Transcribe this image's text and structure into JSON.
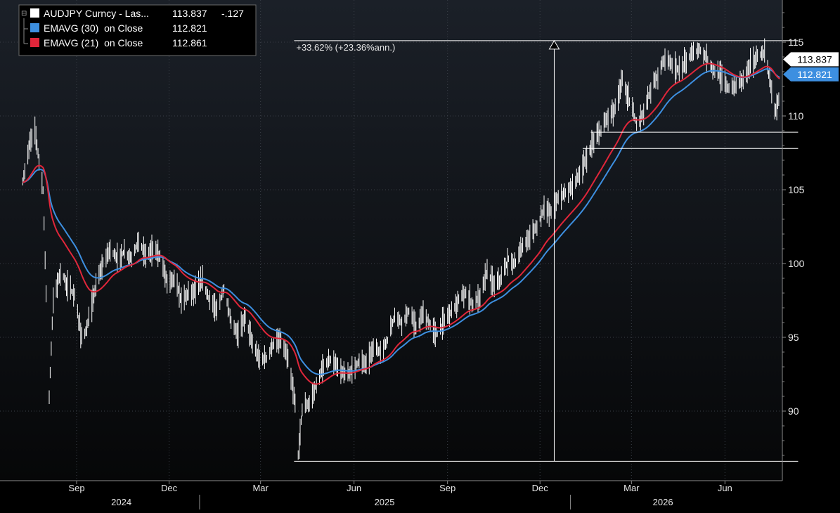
{
  "chart_data": {
    "type": "line",
    "title": "",
    "xlabel": "",
    "ylabel": "",
    "ylim": [
      86,
      118
    ],
    "grid": true,
    "legend_position": "top-left",
    "y_ticks": [
      90,
      95,
      100,
      105,
      110,
      115
    ],
    "x_month_ticks": [
      {
        "label": "Sep",
        "date": "2024-09-01"
      },
      {
        "label": "Dec",
        "date": "2024-12-01"
      },
      {
        "label": "Mar",
        "date": "2025-03-01"
      },
      {
        "label": "Jun",
        "date": "2025-06-01"
      },
      {
        "label": "Sep",
        "date": "2025-09-01"
      },
      {
        "label": "Dec",
        "date": "2025-12-01"
      },
      {
        "label": "Mar",
        "date": "2026-03-01"
      },
      {
        "label": "Jun",
        "date": "2026-06-01"
      }
    ],
    "x_year_labels": [
      {
        "label": "2024",
        "date": "2024-10-15"
      },
      {
        "label": "2025",
        "date": "2025-07-01"
      },
      {
        "label": "2026",
        "date": "2026-04-01"
      }
    ],
    "x_year_dividers": [
      "2024-12-31",
      "2025-12-31"
    ],
    "price_points": [
      [
        "2024-07-10",
        105.5
      ],
      [
        "2024-07-18",
        108.5
      ],
      [
        "2024-07-22",
        109.0
      ],
      [
        "2024-07-30",
        105.0
      ],
      [
        "2024-08-05",
        91.0
      ],
      [
        "2024-08-09",
        97.5
      ],
      [
        "2024-08-16",
        99.5
      ],
      [
        "2024-08-23",
        98.5
      ],
      [
        "2024-08-30",
        97.8
      ],
      [
        "2024-09-06",
        95.0
      ],
      [
        "2024-09-11",
        95.5
      ],
      [
        "2024-09-20",
        98.5
      ],
      [
        "2024-09-27",
        100.0
      ],
      [
        "2024-10-04",
        101.0
      ],
      [
        "2024-10-11",
        100.3
      ],
      [
        "2024-10-18",
        100.8
      ],
      [
        "2024-10-25",
        100.3
      ],
      [
        "2024-11-01",
        101.6
      ],
      [
        "2024-11-08",
        100.5
      ],
      [
        "2024-11-15",
        101.0
      ],
      [
        "2024-11-22",
        100.5
      ],
      [
        "2024-11-29",
        98.8
      ],
      [
        "2024-12-06",
        99.0
      ],
      [
        "2024-12-13",
        97.5
      ],
      [
        "2024-12-20",
        98.0
      ],
      [
        "2024-12-27",
        98.2
      ],
      [
        "2025-01-03",
        98.8
      ],
      [
        "2025-01-10",
        97.5
      ],
      [
        "2025-01-17",
        96.8
      ],
      [
        "2025-01-24",
        98.3
      ],
      [
        "2025-01-31",
        96.0
      ],
      [
        "2025-02-07",
        95.2
      ],
      [
        "2025-02-14",
        96.5
      ],
      [
        "2025-02-21",
        94.5
      ],
      [
        "2025-02-28",
        93.5
      ],
      [
        "2025-03-07",
        93.6
      ],
      [
        "2025-03-14",
        94.6
      ],
      [
        "2025-03-21",
        94.8
      ],
      [
        "2025-03-28",
        93.5
      ],
      [
        "2025-04-04",
        90.5
      ],
      [
        "2025-04-07",
        87.0
      ],
      [
        "2025-04-11",
        90.2
      ],
      [
        "2025-04-18",
        90.5
      ],
      [
        "2025-04-25",
        91.8
      ],
      [
        "2025-05-02",
        93.0
      ],
      [
        "2025-05-09",
        93.5
      ],
      [
        "2025-05-16",
        93.0
      ],
      [
        "2025-05-23",
        92.4
      ],
      [
        "2025-05-30",
        92.8
      ],
      [
        "2025-06-06",
        93.4
      ],
      [
        "2025-06-13",
        93.2
      ],
      [
        "2025-06-20",
        94.3
      ],
      [
        "2025-06-27",
        94.0
      ],
      [
        "2025-07-04",
        94.8
      ],
      [
        "2025-07-11",
        96.5
      ],
      [
        "2025-07-18",
        96.0
      ],
      [
        "2025-07-25",
        96.8
      ],
      [
        "2025-08-01",
        95.6
      ],
      [
        "2025-08-08",
        96.6
      ],
      [
        "2025-08-15",
        95.8
      ],
      [
        "2025-08-22",
        95.2
      ],
      [
        "2025-08-29",
        96.2
      ],
      [
        "2025-09-05",
        96.8
      ],
      [
        "2025-09-12",
        97.5
      ],
      [
        "2025-09-19",
        98.0
      ],
      [
        "2025-09-26",
        97.2
      ],
      [
        "2025-10-03",
        97.8
      ],
      [
        "2025-10-10",
        99.5
      ],
      [
        "2025-10-17",
        98.5
      ],
      [
        "2025-10-24",
        99.0
      ],
      [
        "2025-10-31",
        100.3
      ],
      [
        "2025-11-07",
        100.0
      ],
      [
        "2025-11-14",
        101.2
      ],
      [
        "2025-11-21",
        101.8
      ],
      [
        "2025-11-28",
        102.5
      ],
      [
        "2025-12-05",
        103.8
      ],
      [
        "2025-12-12",
        103.5
      ],
      [
        "2025-12-19",
        104.5
      ],
      [
        "2025-12-26",
        104.8
      ],
      [
        "2026-01-02",
        105.3
      ],
      [
        "2026-01-09",
        106.0
      ],
      [
        "2026-01-16",
        107.2
      ],
      [
        "2026-01-23",
        108.3
      ],
      [
        "2026-01-30",
        109.0
      ],
      [
        "2026-02-06",
        110.0
      ],
      [
        "2026-02-13",
        110.5
      ],
      [
        "2026-02-20",
        112.5
      ],
      [
        "2026-02-27",
        111.0
      ],
      [
        "2026-03-06",
        109.5
      ],
      [
        "2026-03-13",
        110.2
      ],
      [
        "2026-03-20",
        111.8
      ],
      [
        "2026-03-27",
        112.8
      ],
      [
        "2026-04-03",
        114.0
      ],
      [
        "2026-04-10",
        113.5
      ],
      [
        "2026-04-17",
        113.0
      ],
      [
        "2026-04-24",
        113.8
      ],
      [
        "2026-05-01",
        114.3
      ],
      [
        "2026-05-08",
        114.5
      ],
      [
        "2026-05-15",
        113.8
      ],
      [
        "2026-05-22",
        113.0
      ],
      [
        "2026-05-29",
        112.6
      ],
      [
        "2026-06-05",
        111.8
      ],
      [
        "2026-06-12",
        112.0
      ],
      [
        "2026-06-19",
        112.6
      ],
      [
        "2026-06-26",
        113.5
      ],
      [
        "2026-07-03",
        114.0
      ],
      [
        "2026-07-10",
        114.3
      ],
      [
        "2026-07-15",
        112.5
      ],
      [
        "2026-07-20",
        110.2
      ],
      [
        "2026-07-25",
        111.5
      ],
      [
        "2026-07-31",
        112.8
      ],
      [
        "2026-08-07",
        113.5
      ],
      [
        "2026-08-12",
        113.837
      ]
    ],
    "series": [
      {
        "name": "AUDJPY Curncy - Las...",
        "color": "#ffffff",
        "last": "113.837",
        "change": "-.127",
        "style": "bars"
      },
      {
        "name": "EMAVG (30)  on Close",
        "color": "#3d8fe0",
        "last": "112.821",
        "period": 30,
        "style": "line"
      },
      {
        "name": "EMAVG (21)  on Close",
        "color": "#e0263a",
        "last": "112.861",
        "period": 21,
        "style": "line"
      }
    ],
    "last_price_label": {
      "value": "113.837",
      "y": 113.837,
      "bg": "#ffffff",
      "fg": "#000000"
    },
    "ema_price_label": {
      "value": "112.821",
      "y": 112.821,
      "bg": "#3d8fe0",
      "fg": "#ffffff"
    },
    "annotation": {
      "text": "+33.62% (+23.36%ann.)",
      "low": 86.6,
      "high": 115.1,
      "from_date": "2025-04-03",
      "arrow_date": "2025-12-15",
      "to_date": "2026-08-12"
    },
    "support_lines": [
      {
        "y": 108.9,
        "from_date": "2026-01-20",
        "to_date": "2026-08-12"
      },
      {
        "y": 107.8,
        "from_date": "2026-01-12",
        "to_date": "2026-08-12"
      }
    ]
  }
}
